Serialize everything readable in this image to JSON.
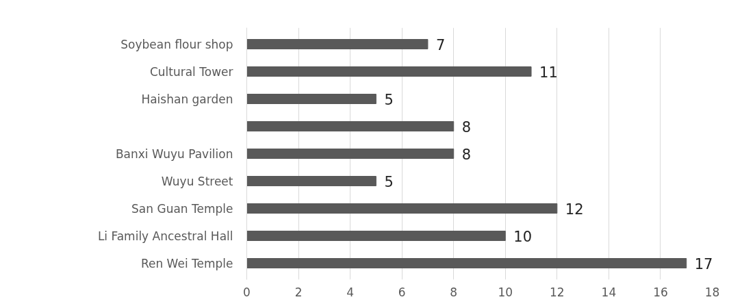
{
  "chart_data": {
    "type": "bar",
    "orientation": "horizontal",
    "categories": [
      "Soybean flour shop",
      "Cultural Tower",
      "Haishan garden",
      null,
      "Banxi Wuyu Pavilion",
      "Wuyu Street",
      "San Guan Temple",
      "Li Family Ancestral Hall",
      "Ren Wei Temple"
    ],
    "values": [
      7,
      11,
      5,
      8,
      8,
      5,
      12,
      10,
      17
    ],
    "color": "#595959",
    "data_labels": true,
    "grid": "x",
    "xlim": [
      0,
      18
    ],
    "xticks": [
      0,
      2,
      4,
      6,
      8,
      10,
      12,
      14,
      16,
      18
    ]
  }
}
